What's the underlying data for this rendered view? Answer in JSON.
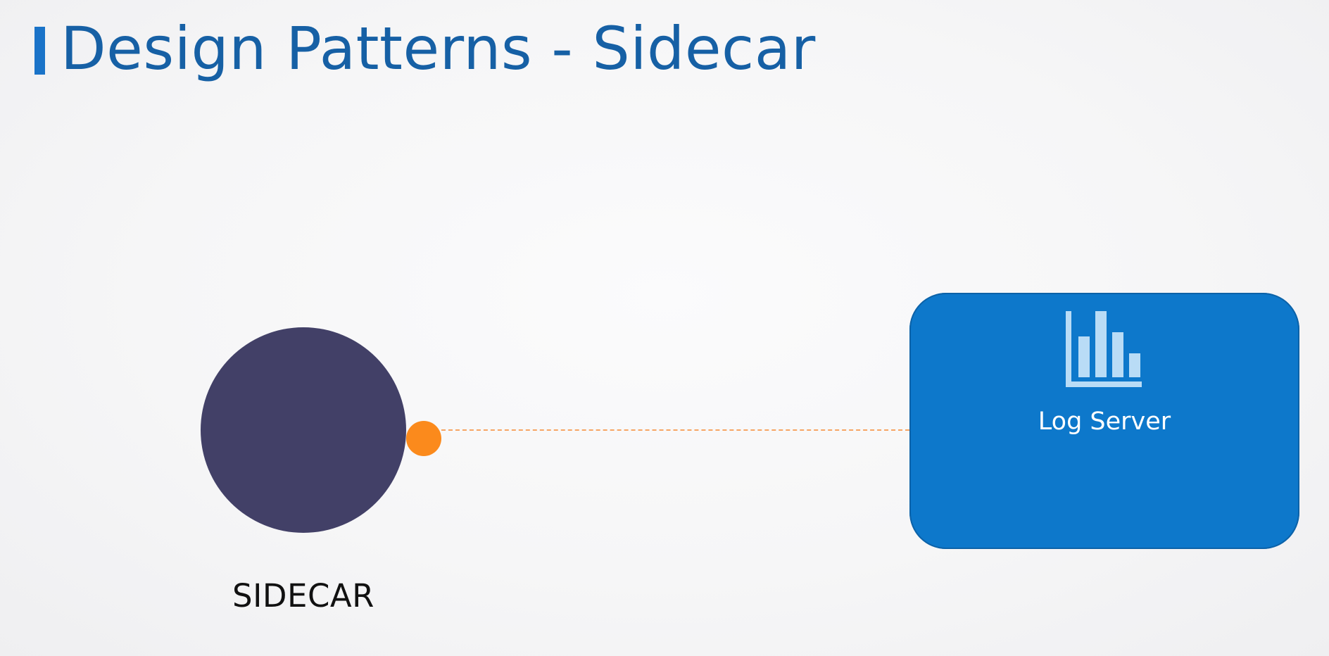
{
  "slide": {
    "title": "Design Patterns - Sidecar",
    "accent_color": "#1a73c8",
    "title_color": "#1660a5"
  },
  "sidecar": {
    "label": "SIDECAR",
    "circle_color": "#424067",
    "port_color": "#fb8a1c"
  },
  "log_server": {
    "label": "Log Server",
    "icon": "bar-chart-icon",
    "box_color": "#0d78cb",
    "icon_color": "#b9dcf6"
  },
  "connector": {
    "style": "dashed",
    "color": "#f7a563"
  }
}
